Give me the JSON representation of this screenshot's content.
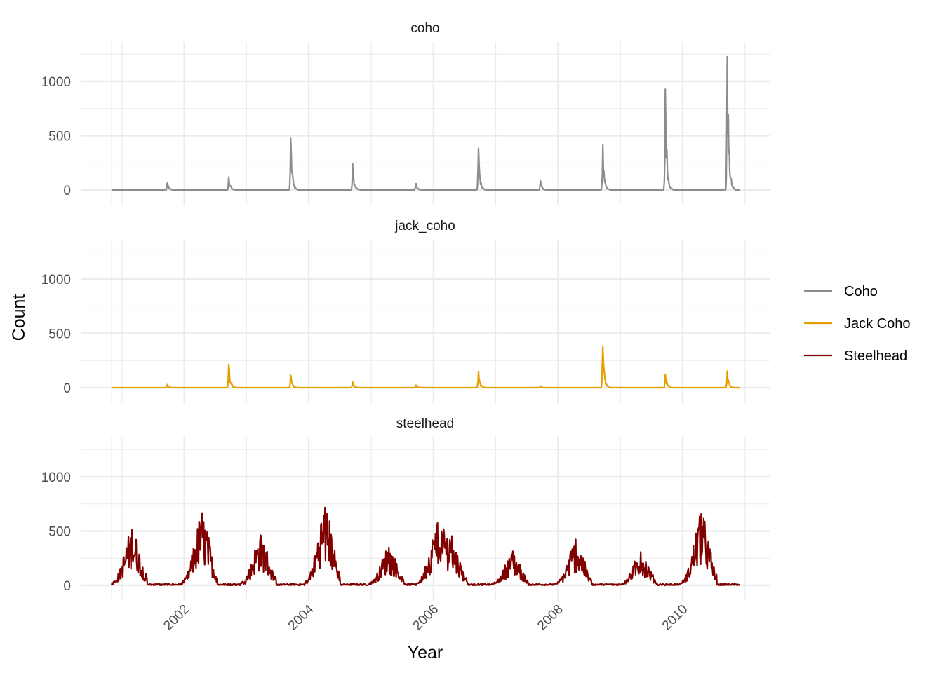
{
  "chart_data": {
    "type": "line",
    "layout": "faceted-vertical",
    "xlabel": "Year",
    "ylabel": "Count",
    "x_range": [
      "2000-11-01",
      "2010-11-30"
    ],
    "x_ticks": [
      "2002",
      "2004",
      "2006",
      "2008",
      "2010"
    ],
    "y_range": [
      0,
      1300
    ],
    "y_ticks": [
      0,
      500,
      1000
    ],
    "grid": true,
    "legend_position": "right",
    "panels": [
      {
        "strip": "coho",
        "series": "Coho",
        "peaks": [
          {
            "date": "2001-09-25",
            "value": 70
          },
          {
            "date": "2002-09-20",
            "value": 125
          },
          {
            "date": "2003-09-18",
            "value": 500
          },
          {
            "date": "2004-09-15",
            "value": 255
          },
          {
            "date": "2005-09-20",
            "value": 65
          },
          {
            "date": "2006-09-22",
            "value": 385
          },
          {
            "date": "2007-09-20",
            "value": 85
          },
          {
            "date": "2008-09-20",
            "value": 415
          },
          {
            "date": "2009-09-22",
            "value": 975
          },
          {
            "date": "2010-09-20",
            "value": 1290
          }
        ]
      },
      {
        "strip": "jack_coho",
        "series": "Jack Coho",
        "peaks": [
          {
            "date": "2001-09-25",
            "value": 30
          },
          {
            "date": "2002-09-20",
            "value": 225
          },
          {
            "date": "2003-09-18",
            "value": 120
          },
          {
            "date": "2004-09-15",
            "value": 55
          },
          {
            "date": "2005-09-20",
            "value": 25
          },
          {
            "date": "2006-09-22",
            "value": 150
          },
          {
            "date": "2007-09-20",
            "value": 15
          },
          {
            "date": "2008-09-20",
            "value": 380
          },
          {
            "date": "2009-09-22",
            "value": 130
          },
          {
            "date": "2010-09-20",
            "value": 160
          }
        ]
      },
      {
        "strip": "steelhead",
        "series": "Steelhead",
        "peaks": [
          {
            "date": "2001-03-01",
            "value": 500
          },
          {
            "date": "2002-04-15",
            "value": 650
          },
          {
            "date": "2003-03-25",
            "value": 460
          },
          {
            "date": "2004-04-05",
            "value": 715
          },
          {
            "date": "2005-04-15",
            "value": 350
          },
          {
            "date": "2006-01-20",
            "value": 525
          },
          {
            "date": "2006-04-20",
            "value": 390
          },
          {
            "date": "2007-04-10",
            "value": 300
          },
          {
            "date": "2008-04-15",
            "value": 415
          },
          {
            "date": "2009-05-01",
            "value": 300
          },
          {
            "date": "2010-04-20",
            "value": 655
          }
        ]
      }
    ],
    "legend": [
      {
        "name": "Coho",
        "color": "#8c8c8c"
      },
      {
        "name": "Jack Coho",
        "color": "#e69f00"
      },
      {
        "name": "Steelhead",
        "color": "#800000"
      }
    ]
  }
}
